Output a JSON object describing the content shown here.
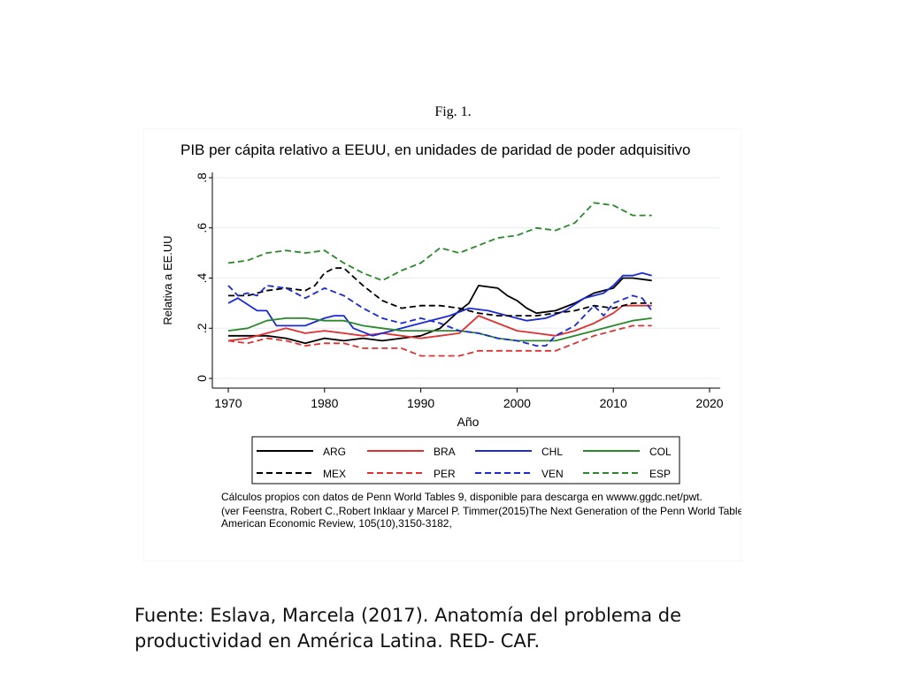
{
  "figure_label": "Fig. 1.",
  "source": {
    "line1": "Fuente: Eslava, Marcela (2017). Anatomía del problema de",
    "line2": "productividad en América Latina. RED- CAF."
  },
  "chart_data": {
    "type": "line",
    "title": "PIB per cápita relativo a EEUU, en unidades de paridad de poder adquisitivo",
    "xlabel": "Año",
    "ylabel": "Relativa a EE.UU",
    "xlim": [
      1970,
      2020
    ],
    "ylim": [
      0,
      0.8
    ],
    "xticks": [
      1970,
      1980,
      1990,
      2000,
      2010,
      2020
    ],
    "xtick_labels": [
      "1970",
      "1980",
      "1990",
      "2000",
      "2010",
      "2020"
    ],
    "yticks": [
      0,
      0.2,
      0.4,
      0.6,
      0.8
    ],
    "ytick_labels": [
      "0",
      ".2",
      ".4",
      ".6",
      ".8"
    ],
    "grid": true,
    "legend_position": "bottom",
    "note": {
      "line1": "Cálculos propios con datos de Penn World Tables 9, disponible para descarga en wwww.ggdc.net/pwt.",
      "line2": "(ver Feenstra, Robert C.,Robert Inklaar y Marcel P. Timmer(2015)The Next Generation of the Penn World Table",
      "line3": "American Economic Review, 105(10),3150-3182,"
    },
    "series": [
      {
        "name": "ARG",
        "color": "#000000",
        "dash": false,
        "x": [
          1970,
          1972,
          1974,
          1976,
          1978,
          1980,
          1982,
          1984,
          1986,
          1988,
          1990,
          1992,
          1994,
          1995,
          1996,
          1998,
          1999,
          2000,
          2001,
          2002,
          2004,
          2006,
          2008,
          2010,
          2011,
          2012,
          2014
        ],
        "y": [
          0.17,
          0.17,
          0.17,
          0.16,
          0.14,
          0.16,
          0.15,
          0.16,
          0.15,
          0.16,
          0.17,
          0.2,
          0.27,
          0.3,
          0.37,
          0.36,
          0.33,
          0.31,
          0.28,
          0.26,
          0.27,
          0.3,
          0.34,
          0.36,
          0.4,
          0.4,
          0.39
        ]
      },
      {
        "name": "BRA",
        "color": "#e03030",
        "dash": false,
        "x": [
          1970,
          1972,
          1974,
          1976,
          1978,
          1980,
          1982,
          1984,
          1986,
          1988,
          1990,
          1992,
          1994,
          1996,
          1998,
          2000,
          2002,
          2004,
          2006,
          2008,
          2010,
          2011,
          2012,
          2014
        ],
        "y": [
          0.15,
          0.16,
          0.18,
          0.2,
          0.18,
          0.19,
          0.18,
          0.17,
          0.18,
          0.17,
          0.16,
          0.17,
          0.18,
          0.25,
          0.22,
          0.19,
          0.18,
          0.17,
          0.19,
          0.22,
          0.26,
          0.29,
          0.29,
          0.29
        ]
      },
      {
        "name": "CHL",
        "color": "#1a2ad6",
        "dash": false,
        "x": [
          1970,
          1971,
          1973,
          1974,
          1975,
          1976,
          1978,
          1980,
          1981,
          1982,
          1983,
          1985,
          1987,
          1989,
          1991,
          1993,
          1995,
          1997,
          1999,
          2001,
          2003,
          2005,
          2007,
          2009,
          2010,
          2011,
          2012,
          2013,
          2014
        ],
        "y": [
          0.3,
          0.32,
          0.27,
          0.27,
          0.21,
          0.21,
          0.21,
          0.24,
          0.25,
          0.25,
          0.2,
          0.17,
          0.19,
          0.21,
          0.23,
          0.25,
          0.28,
          0.27,
          0.25,
          0.23,
          0.24,
          0.27,
          0.32,
          0.34,
          0.37,
          0.41,
          0.41,
          0.42,
          0.41
        ]
      },
      {
        "name": "COL",
        "color": "#2a8a2a",
        "dash": false,
        "x": [
          1970,
          1972,
          1974,
          1976,
          1978,
          1980,
          1982,
          1984,
          1986,
          1988,
          1990,
          1992,
          1994,
          1996,
          1998,
          2000,
          2002,
          2004,
          2006,
          2008,
          2010,
          2012,
          2014
        ],
        "y": [
          0.19,
          0.2,
          0.23,
          0.24,
          0.24,
          0.23,
          0.23,
          0.21,
          0.2,
          0.19,
          0.19,
          0.19,
          0.19,
          0.18,
          0.16,
          0.15,
          0.15,
          0.15,
          0.17,
          0.19,
          0.21,
          0.23,
          0.24
        ]
      },
      {
        "name": "MEX",
        "color": "#000000",
        "dash": true,
        "x": [
          1970,
          1972,
          1974,
          1976,
          1978,
          1979,
          1980,
          1981,
          1982,
          1984,
          1986,
          1988,
          1990,
          1992,
          1994,
          1996,
          1998,
          2000,
          2002,
          2004,
          2006,
          2008,
          2010,
          2012,
          2014
        ],
        "y": [
          0.33,
          0.33,
          0.35,
          0.36,
          0.35,
          0.37,
          0.42,
          0.44,
          0.44,
          0.37,
          0.31,
          0.28,
          0.29,
          0.29,
          0.28,
          0.26,
          0.25,
          0.25,
          0.25,
          0.26,
          0.27,
          0.29,
          0.28,
          0.3,
          0.3
        ]
      },
      {
        "name": "PER",
        "color": "#e03030",
        "dash": true,
        "x": [
          1970,
          1972,
          1974,
          1976,
          1978,
          1980,
          1982,
          1984,
          1986,
          1988,
          1990,
          1992,
          1994,
          1996,
          1998,
          2000,
          2002,
          2004,
          2006,
          2008,
          2010,
          2012,
          2014
        ],
        "y": [
          0.15,
          0.14,
          0.16,
          0.15,
          0.13,
          0.14,
          0.14,
          0.12,
          0.12,
          0.12,
          0.09,
          0.09,
          0.09,
          0.11,
          0.11,
          0.11,
          0.11,
          0.11,
          0.14,
          0.17,
          0.19,
          0.21,
          0.21
        ]
      },
      {
        "name": "VEN",
        "color": "#1a2ad6",
        "dash": true,
        "x": [
          1970,
          1971,
          1972,
          1973,
          1974,
          1976,
          1978,
          1980,
          1982,
          1984,
          1986,
          1988,
          1990,
          1992,
          1994,
          1996,
          1998,
          2000,
          2002,
          2003,
          2004,
          2006,
          2008,
          2009,
          2010,
          2012,
          2013,
          2014
        ],
        "y": [
          0.37,
          0.33,
          0.34,
          0.33,
          0.37,
          0.36,
          0.32,
          0.36,
          0.33,
          0.28,
          0.24,
          0.22,
          0.24,
          0.22,
          0.19,
          0.18,
          0.16,
          0.15,
          0.13,
          0.13,
          0.17,
          0.21,
          0.29,
          0.25,
          0.3,
          0.33,
          0.32,
          0.27
        ]
      },
      {
        "name": "ESP",
        "color": "#2a8a2a",
        "dash": true,
        "x": [
          1970,
          1972,
          1974,
          1976,
          1978,
          1980,
          1982,
          1984,
          1986,
          1988,
          1990,
          1992,
          1994,
          1996,
          1998,
          2000,
          2002,
          2004,
          2006,
          2008,
          2010,
          2012,
          2014
        ],
        "y": [
          0.46,
          0.47,
          0.5,
          0.51,
          0.5,
          0.51,
          0.46,
          0.42,
          0.39,
          0.43,
          0.46,
          0.52,
          0.5,
          0.53,
          0.56,
          0.57,
          0.6,
          0.59,
          0.62,
          0.7,
          0.69,
          0.65,
          0.65
        ]
      }
    ]
  }
}
